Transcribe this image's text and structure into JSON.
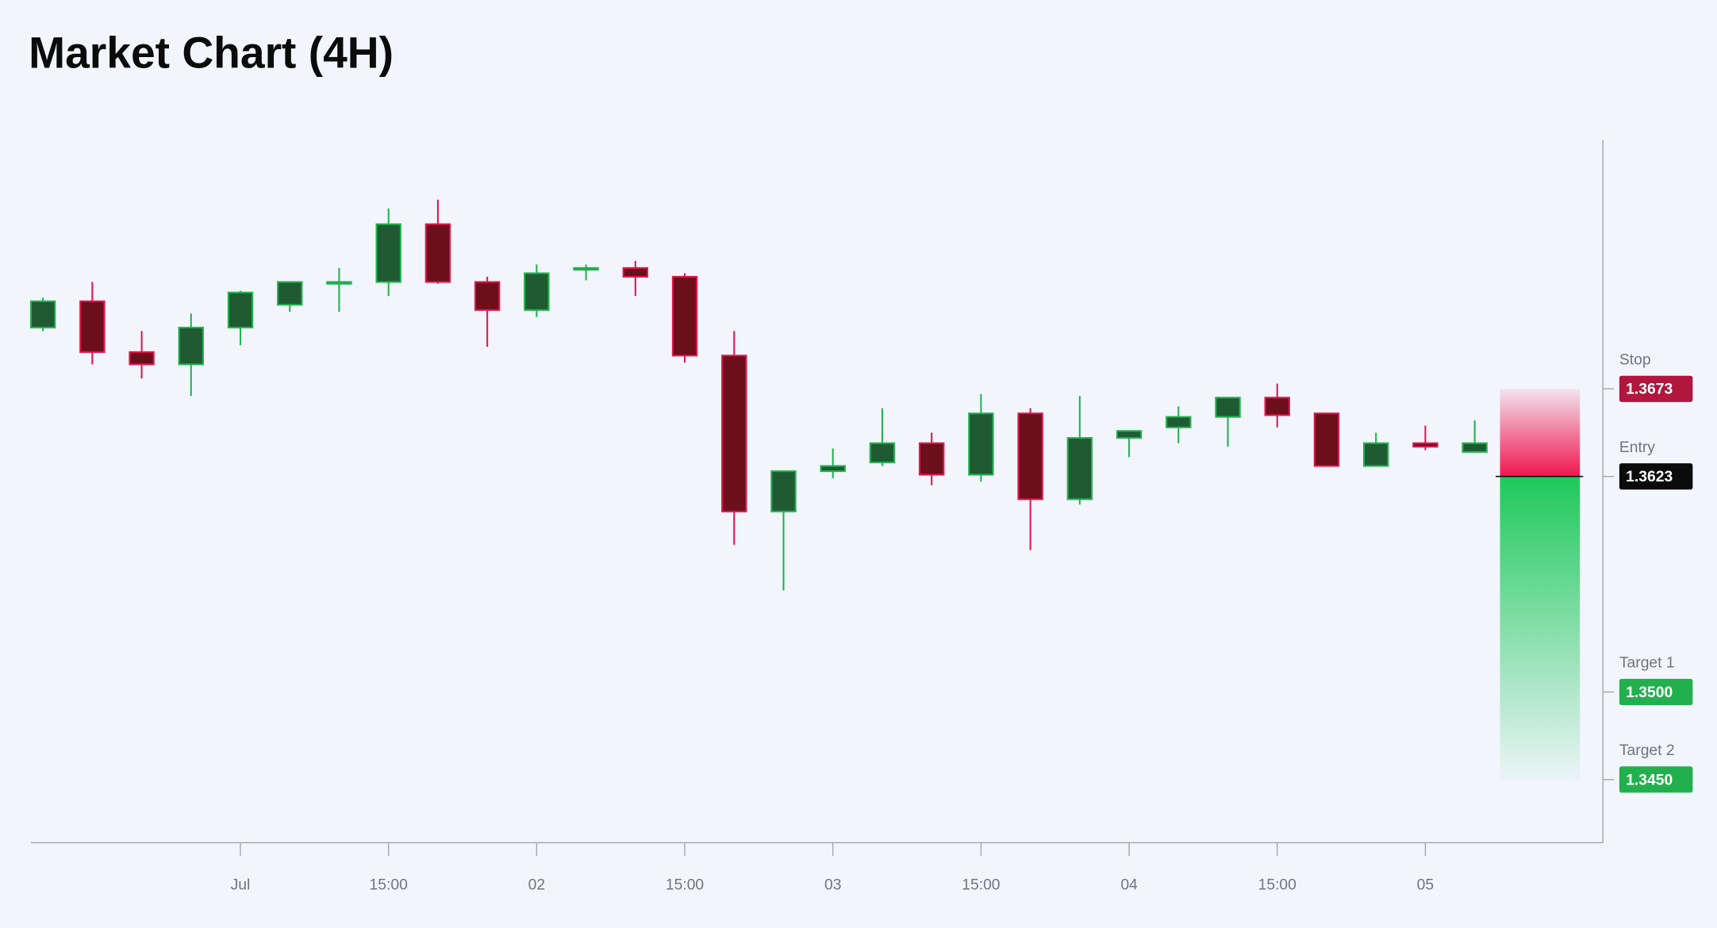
{
  "chart_data": {
    "type": "candlestick",
    "title": "Market Chart (4H)",
    "categories": [
      null,
      null,
      null,
      null,
      "Jul",
      null,
      null,
      "15:00",
      null,
      null,
      "02",
      null,
      null,
      "15:00",
      null,
      null,
      "03",
      null,
      null,
      "15:00",
      null,
      null,
      "04",
      null,
      null,
      "15:00",
      null,
      null,
      "05",
      null
    ],
    "open": [
      1.3708,
      1.3723,
      1.3694,
      1.3687,
      1.3708,
      1.3721,
      1.3733,
      1.3734,
      1.3767,
      1.3734,
      1.3718,
      1.3741,
      1.3742,
      1.3737,
      1.3692,
      1.3603,
      1.3626,
      1.3631,
      1.3642,
      1.3624,
      1.3659,
      1.361,
      1.3645,
      1.3651,
      1.3657,
      1.3668,
      1.3659,
      1.3629,
      1.3642,
      1.3637
    ],
    "high": [
      1.3725,
      1.3734,
      1.3706,
      1.3716,
      1.3729,
      1.3734,
      1.3742,
      1.3776,
      1.3781,
      1.3737,
      1.3744,
      1.3744,
      1.3746,
      1.3739,
      1.3706,
      1.3626,
      1.3639,
      1.3662,
      1.3648,
      1.367,
      1.3662,
      1.3669,
      1.3649,
      1.3663,
      1.3668,
      1.3676,
      1.3659,
      1.3648,
      1.3652,
      1.3655
    ],
    "low": [
      1.3706,
      1.3687,
      1.3679,
      1.3669,
      1.3698,
      1.3717,
      1.3717,
      1.3726,
      1.3733,
      1.3697,
      1.3714,
      1.3735,
      1.3726,
      1.3688,
      1.3584,
      1.3558,
      1.3622,
      1.3629,
      1.3618,
      1.362,
      1.3581,
      1.3607,
      1.3634,
      1.3642,
      1.364,
      1.3651,
      1.3629,
      1.3629,
      1.3638,
      1.3637
    ],
    "close": [
      1.3723,
      1.3694,
      1.3687,
      1.3708,
      1.3728,
      1.3734,
      1.3734,
      1.3767,
      1.3734,
      1.3718,
      1.3739,
      1.3742,
      1.3737,
      1.3692,
      1.3603,
      1.3626,
      1.3629,
      1.3642,
      1.3624,
      1.3659,
      1.361,
      1.3645,
      1.3649,
      1.3657,
      1.3668,
      1.3658,
      1.3629,
      1.3642,
      1.364,
      1.3642
    ],
    "up_color": "#22b350",
    "down_color": "#e3164f",
    "ylim": [
      1.3414,
      1.3815
    ],
    "levels": [
      {
        "name": "Stop",
        "value": 1.3673,
        "color": "#b0163e"
      },
      {
        "name": "Entry",
        "value": 1.3623,
        "color": "#0b0b0b"
      },
      {
        "name": "Target 1",
        "value": 1.35,
        "label": "1.3500",
        "color": "#22b04f"
      },
      {
        "name": "Target 2",
        "value": 1.345,
        "label": "1.3450",
        "color": "#22b04f"
      }
    ]
  }
}
